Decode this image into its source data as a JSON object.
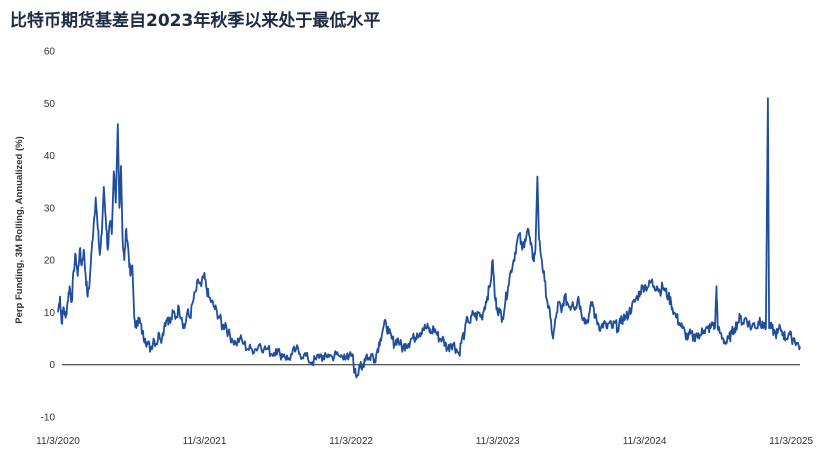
{
  "title": "比特币期货基差自2023年秋季以来处于最低水平",
  "chart_data": {
    "type": "line",
    "title": "比特币期货基差自2023年秋季以来处于最低水平",
    "ylabel": "Perp Funding, 3M Rolling, Annualized (%)",
    "xlabel": "",
    "ylim": [
      -10,
      60
    ],
    "yticks": [
      "-10",
      "0",
      "10",
      "20",
      "30",
      "40",
      "50",
      "60"
    ],
    "xticks": [
      "11/3/2020",
      "11/3/2021",
      "11/3/2022",
      "11/3/2023",
      "11/3/2024",
      "11/3/2025"
    ],
    "xrange": [
      "2020-11-03",
      "2025-11-25"
    ],
    "grid": false,
    "zero_line": true,
    "line_color": "#1f4e9c",
    "series": [
      {
        "points": [
          [
            "2020-11-03",
            10
          ],
          [
            "2020-11-08",
            13
          ],
          [
            "2020-11-12",
            8
          ],
          [
            "2020-11-17",
            11
          ],
          [
            "2020-11-22",
            9
          ],
          [
            "2020-11-27",
            12
          ],
          [
            "2020-12-02",
            15
          ],
          [
            "2020-12-07",
            12
          ],
          [
            "2020-12-12",
            18
          ],
          [
            "2020-12-17",
            21
          ],
          [
            "2020-12-22",
            17
          ],
          [
            "2020-12-27",
            22
          ],
          [
            "2021-01-01",
            19
          ],
          [
            "2021-01-06",
            22
          ],
          [
            "2021-01-11",
            17
          ],
          [
            "2021-01-16",
            13
          ],
          [
            "2021-01-21",
            16
          ],
          [
            "2021-01-26",
            22
          ],
          [
            "2021-01-31",
            27
          ],
          [
            "2021-02-05",
            32
          ],
          [
            "2021-02-10",
            26
          ],
          [
            "2021-02-15",
            21
          ],
          [
            "2021-02-20",
            25
          ],
          [
            "2021-02-25",
            34
          ],
          [
            "2021-03-02",
            28
          ],
          [
            "2021-03-07",
            22
          ],
          [
            "2021-03-12",
            27
          ],
          [
            "2021-03-17",
            25
          ],
          [
            "2021-03-22",
            37
          ],
          [
            "2021-03-27",
            31
          ],
          [
            "2021-04-01",
            46
          ],
          [
            "2021-04-05",
            30
          ],
          [
            "2021-04-09",
            38
          ],
          [
            "2021-04-13",
            24
          ],
          [
            "2021-04-17",
            20
          ],
          [
            "2021-04-22",
            26
          ],
          [
            "2021-04-27",
            22
          ],
          [
            "2021-05-02",
            17
          ],
          [
            "2021-05-07",
            19
          ],
          [
            "2021-05-12",
            9
          ],
          [
            "2021-05-17",
            7
          ],
          [
            "2021-05-22",
            9
          ],
          [
            "2021-05-27",
            8
          ],
          [
            "2021-06-01",
            6
          ],
          [
            "2021-06-08",
            5
          ],
          [
            "2021-06-15",
            4
          ],
          [
            "2021-06-22",
            3
          ],
          [
            "2021-06-29",
            5
          ],
          [
            "2021-07-06",
            4
          ],
          [
            "2021-07-13",
            6
          ],
          [
            "2021-07-20",
            5
          ],
          [
            "2021-07-27",
            8
          ],
          [
            "2021-08-03",
            9
          ],
          [
            "2021-08-10",
            8
          ],
          [
            "2021-08-17",
            10
          ],
          [
            "2021-08-24",
            9
          ],
          [
            "2021-08-31",
            11
          ],
          [
            "2021-09-07",
            9
          ],
          [
            "2021-09-14",
            7
          ],
          [
            "2021-09-21",
            10
          ],
          [
            "2021-09-28",
            9
          ],
          [
            "2021-10-05",
            12
          ],
          [
            "2021-10-12",
            14
          ],
          [
            "2021-10-19",
            16
          ],
          [
            "2021-10-26",
            15
          ],
          [
            "2021-11-01",
            17
          ],
          [
            "2021-11-07",
            15
          ],
          [
            "2021-11-13",
            13
          ],
          [
            "2021-11-20",
            12
          ],
          [
            "2021-11-27",
            11
          ],
          [
            "2021-12-04",
            10
          ],
          [
            "2021-12-11",
            9
          ],
          [
            "2021-12-18",
            7
          ],
          [
            "2021-12-25",
            8
          ],
          [
            "2022-01-01",
            6
          ],
          [
            "2022-01-10",
            5
          ],
          [
            "2022-01-20",
            4
          ],
          [
            "2022-01-30",
            5
          ],
          [
            "2022-02-09",
            4
          ],
          [
            "2022-02-19",
            3
          ],
          [
            "2022-03-01",
            3
          ],
          [
            "2022-03-11",
            3
          ],
          [
            "2022-03-21",
            4
          ],
          [
            "2022-03-31",
            3
          ],
          [
            "2022-04-10",
            3
          ],
          [
            "2022-04-20",
            2
          ],
          [
            "2022-04-30",
            3
          ],
          [
            "2022-05-10",
            2
          ],
          [
            "2022-05-20",
            2
          ],
          [
            "2022-05-30",
            1
          ],
          [
            "2022-06-09",
            2
          ],
          [
            "2022-06-19",
            3
          ],
          [
            "2022-06-29",
            2
          ],
          [
            "2022-07-09",
            2
          ],
          [
            "2022-07-19",
            1
          ],
          [
            "2022-07-29",
            0.5
          ],
          [
            "2022-08-08",
            1
          ],
          [
            "2022-08-18",
            2
          ],
          [
            "2022-08-28",
            1
          ],
          [
            "2022-09-07",
            2
          ],
          [
            "2022-09-17",
            1.5
          ],
          [
            "2022-09-27",
            2
          ],
          [
            "2022-10-07",
            1.5
          ],
          [
            "2022-10-17",
            2
          ],
          [
            "2022-10-27",
            1
          ],
          [
            "2022-11-06",
            2
          ],
          [
            "2022-11-12",
            -1.5
          ],
          [
            "2022-11-18",
            -2
          ],
          [
            "2022-11-24",
            0
          ],
          [
            "2022-11-30",
            -1
          ],
          [
            "2022-12-06",
            1
          ],
          [
            "2022-12-12",
            2
          ],
          [
            "2022-12-18",
            1
          ],
          [
            "2022-12-24",
            2
          ],
          [
            "2023-01-01",
            1
          ],
          [
            "2023-01-08",
            3
          ],
          [
            "2023-01-15",
            5
          ],
          [
            "2023-01-22",
            7
          ],
          [
            "2023-01-29",
            8
          ],
          [
            "2023-02-05",
            6
          ],
          [
            "2023-02-12",
            5
          ],
          [
            "2023-02-19",
            4
          ],
          [
            "2023-02-26",
            5
          ],
          [
            "2023-03-05",
            4
          ],
          [
            "2023-03-12",
            3
          ],
          [
            "2023-03-19",
            4
          ],
          [
            "2023-03-26",
            4
          ],
          [
            "2023-04-02",
            5
          ],
          [
            "2023-04-09",
            5
          ],
          [
            "2023-04-16",
            6
          ],
          [
            "2023-04-23",
            6
          ],
          [
            "2023-04-30",
            7
          ],
          [
            "2023-05-07",
            7
          ],
          [
            "2023-05-14",
            7
          ],
          [
            "2023-05-21",
            6
          ],
          [
            "2023-05-28",
            7
          ],
          [
            "2023-06-04",
            6
          ],
          [
            "2023-06-11",
            5
          ],
          [
            "2023-06-18",
            5
          ],
          [
            "2023-06-25",
            4
          ],
          [
            "2023-07-02",
            3
          ],
          [
            "2023-07-09",
            4
          ],
          [
            "2023-07-16",
            4
          ],
          [
            "2023-07-23",
            3
          ],
          [
            "2023-07-30",
            2
          ],
          [
            "2023-08-06",
            5
          ],
          [
            "2023-08-13",
            6
          ],
          [
            "2023-08-20",
            9
          ],
          [
            "2023-08-27",
            8
          ],
          [
            "2023-09-03",
            10
          ],
          [
            "2023-09-10",
            9
          ],
          [
            "2023-09-17",
            10
          ],
          [
            "2023-09-24",
            9
          ],
          [
            "2023-10-01",
            11
          ],
          [
            "2023-10-08",
            13
          ],
          [
            "2023-10-15",
            15
          ],
          [
            "2023-10-22",
            20
          ],
          [
            "2023-10-27",
            13
          ],
          [
            "2023-11-01",
            11
          ],
          [
            "2023-11-08",
            10
          ],
          [
            "2023-11-15",
            9
          ],
          [
            "2023-11-22",
            12
          ],
          [
            "2023-11-29",
            15
          ],
          [
            "2023-12-06",
            18
          ],
          [
            "2023-12-13",
            20
          ],
          [
            "2023-12-20",
            23
          ],
          [
            "2023-12-27",
            25
          ],
          [
            "2024-01-03",
            22
          ],
          [
            "2024-01-10",
            24
          ],
          [
            "2024-01-17",
            26
          ],
          [
            "2024-01-24",
            23
          ],
          [
            "2024-01-31",
            20
          ],
          [
            "2024-02-05",
            22
          ],
          [
            "2024-02-10",
            36
          ],
          [
            "2024-02-14",
            24
          ],
          [
            "2024-02-21",
            20
          ],
          [
            "2024-02-28",
            16
          ],
          [
            "2024-03-06",
            12
          ],
          [
            "2024-03-13",
            9
          ],
          [
            "2024-03-20",
            5
          ],
          [
            "2024-03-27",
            9
          ],
          [
            "2024-04-03",
            12
          ],
          [
            "2024-04-10",
            10
          ],
          [
            "2024-04-17",
            13
          ],
          [
            "2024-04-24",
            12
          ],
          [
            "2024-05-01",
            11
          ],
          [
            "2024-05-08",
            12
          ],
          [
            "2024-05-15",
            11
          ],
          [
            "2024-05-22",
            13
          ],
          [
            "2024-05-29",
            10
          ],
          [
            "2024-06-05",
            9
          ],
          [
            "2024-06-12",
            8
          ],
          [
            "2024-06-19",
            10
          ],
          [
            "2024-06-26",
            12
          ],
          [
            "2024-07-03",
            9
          ],
          [
            "2024-07-10",
            8
          ],
          [
            "2024-07-17",
            7
          ],
          [
            "2024-07-24",
            8
          ],
          [
            "2024-07-31",
            7
          ],
          [
            "2024-08-07",
            8
          ],
          [
            "2024-08-14",
            7
          ],
          [
            "2024-08-21",
            8
          ],
          [
            "2024-08-28",
            7
          ],
          [
            "2024-09-04",
            8
          ],
          [
            "2024-09-11",
            9
          ],
          [
            "2024-09-18",
            9
          ],
          [
            "2024-09-25",
            10
          ],
          [
            "2024-10-02",
            11
          ],
          [
            "2024-10-09",
            12
          ],
          [
            "2024-10-16",
            13
          ],
          [
            "2024-10-23",
            14
          ],
          [
            "2024-10-30",
            15
          ],
          [
            "2024-11-06",
            15
          ],
          [
            "2024-11-13",
            15
          ],
          [
            "2024-11-20",
            16
          ],
          [
            "2024-11-27",
            15
          ],
          [
            "2024-12-04",
            15
          ],
          [
            "2024-12-11",
            14
          ],
          [
            "2024-12-18",
            15
          ],
          [
            "2024-12-25",
            14
          ],
          [
            "2025-01-01",
            13
          ],
          [
            "2025-01-08",
            12
          ],
          [
            "2025-01-15",
            10
          ],
          [
            "2025-01-22",
            9
          ],
          [
            "2025-01-29",
            8
          ],
          [
            "2025-02-05",
            7
          ],
          [
            "2025-02-12",
            6
          ],
          [
            "2025-02-19",
            5
          ],
          [
            "2025-02-26",
            6
          ],
          [
            "2025-03-05",
            5
          ],
          [
            "2025-03-12",
            6
          ],
          [
            "2025-03-19",
            5
          ],
          [
            "2025-03-26",
            7
          ],
          [
            "2025-04-02",
            6
          ],
          [
            "2025-04-09",
            7
          ],
          [
            "2025-04-16",
            7
          ],
          [
            "2025-04-23",
            8
          ],
          [
            "2025-04-27",
            7
          ],
          [
            "2025-05-01",
            15
          ],
          [
            "2025-05-04",
            7
          ],
          [
            "2025-05-11",
            6
          ],
          [
            "2025-05-18",
            5
          ],
          [
            "2025-05-25",
            4
          ],
          [
            "2025-06-01",
            5
          ],
          [
            "2025-06-08",
            6
          ],
          [
            "2025-06-15",
            7
          ],
          [
            "2025-06-22",
            8
          ],
          [
            "2025-06-29",
            9
          ],
          [
            "2025-07-06",
            8
          ],
          [
            "2025-07-13",
            9
          ],
          [
            "2025-07-20",
            8
          ],
          [
            "2025-07-27",
            7
          ],
          [
            "2025-08-03",
            8
          ],
          [
            "2025-08-10",
            7
          ],
          [
            "2025-08-17",
            9
          ],
          [
            "2025-08-22",
            7
          ],
          [
            "2025-08-27",
            8
          ],
          [
            "2025-09-01",
            7
          ],
          [
            "2025-09-06",
            51
          ],
          [
            "2025-09-09",
            7
          ],
          [
            "2025-09-16",
            7
          ],
          [
            "2025-09-23",
            6
          ],
          [
            "2025-09-30",
            6
          ],
          [
            "2025-10-07",
            7
          ],
          [
            "2025-10-14",
            6
          ],
          [
            "2025-10-21",
            5
          ],
          [
            "2025-10-28",
            6
          ],
          [
            "2025-11-04",
            5
          ],
          [
            "2025-11-11",
            5
          ],
          [
            "2025-11-18",
            4
          ],
          [
            "2025-11-25",
            3.5
          ]
        ]
      }
    ]
  }
}
